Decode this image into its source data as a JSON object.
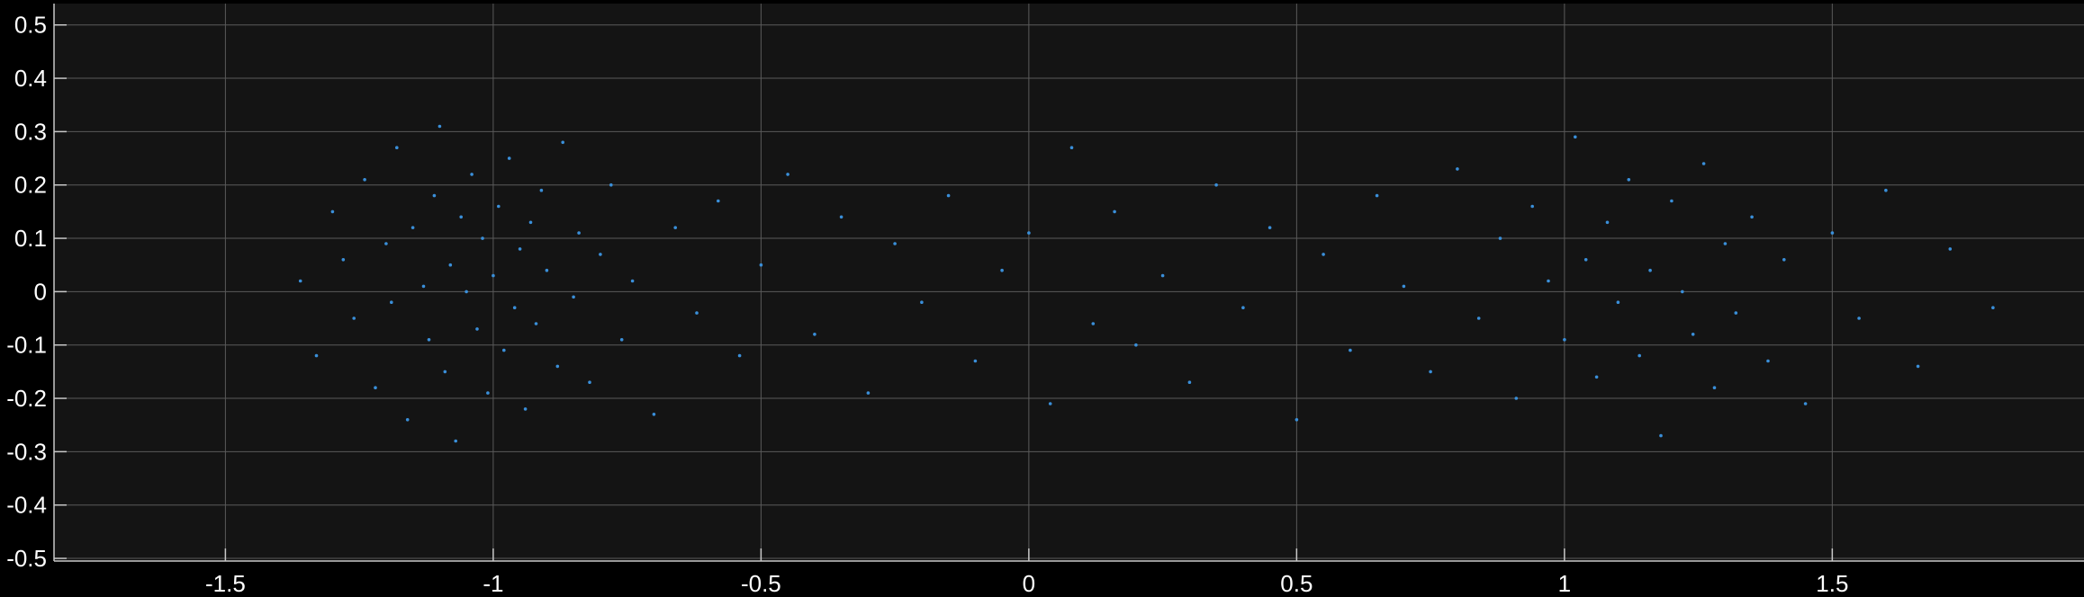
{
  "chart_data": {
    "type": "scatter",
    "title": "",
    "xlabel": "",
    "ylabel": "",
    "xlim": [
      -1.82,
      1.97
    ],
    "ylim": [
      -0.505,
      0.54
    ],
    "x_ticks": [
      -1.5,
      -1,
      -0.5,
      0,
      0.5,
      1,
      1.5
    ],
    "x_tick_labels": [
      "-1.5",
      "-1",
      "-0.5",
      "0",
      "0.5",
      "1",
      "1.5"
    ],
    "y_ticks": [
      0.5,
      0.4,
      0.3,
      0.2,
      0.1,
      0,
      -0.1,
      -0.2,
      -0.3,
      -0.4,
      -0.5
    ],
    "y_tick_labels": [
      "0.5",
      "0.4",
      "0.3",
      "0.2",
      "0.1",
      "0",
      "-0.1",
      "-0.2",
      "-0.3",
      "-0.4",
      "-0.5"
    ],
    "grid": true,
    "colors": {
      "figure_background": "#000000",
      "axes_background": "#141414",
      "grid": "#5a5a5a",
      "axis": "#c8c8c8",
      "tick_text": "#ffffff",
      "marker": "#3a8fd9"
    },
    "series": [
      {
        "marker": "dot",
        "values": [
          [
            -1.36,
            0.02
          ],
          [
            -1.33,
            -0.12
          ],
          [
            -1.3,
            0.15
          ],
          [
            -1.28,
            0.06
          ],
          [
            -1.26,
            -0.05
          ],
          [
            -1.24,
            0.21
          ],
          [
            -1.22,
            -0.18
          ],
          [
            -1.2,
            0.09
          ],
          [
            -1.19,
            -0.02
          ],
          [
            -1.18,
            0.27
          ],
          [
            -1.16,
            -0.24
          ],
          [
            -1.15,
            0.12
          ],
          [
            -1.13,
            0.01
          ],
          [
            -1.12,
            -0.09
          ],
          [
            -1.11,
            0.18
          ],
          [
            -1.1,
            0.31
          ],
          [
            -1.09,
            -0.15
          ],
          [
            -1.08,
            0.05
          ],
          [
            -1.07,
            -0.28
          ],
          [
            -1.06,
            0.14
          ],
          [
            -1.05,
            0.0
          ],
          [
            -1.04,
            0.22
          ],
          [
            -1.03,
            -0.07
          ],
          [
            -1.02,
            0.1
          ],
          [
            -1.01,
            -0.19
          ],
          [
            -1.0,
            0.03
          ],
          [
            -0.99,
            0.16
          ],
          [
            -0.98,
            -0.11
          ],
          [
            -0.97,
            0.25
          ],
          [
            -0.96,
            -0.03
          ],
          [
            -0.95,
            0.08
          ],
          [
            -0.94,
            -0.22
          ],
          [
            -0.93,
            0.13
          ],
          [
            -0.92,
            -0.06
          ],
          [
            -0.91,
            0.19
          ],
          [
            -0.9,
            0.04
          ],
          [
            -0.88,
            -0.14
          ],
          [
            -0.87,
            0.28
          ],
          [
            -0.85,
            -0.01
          ],
          [
            -0.84,
            0.11
          ],
          [
            -0.82,
            -0.17
          ],
          [
            -0.8,
            0.07
          ],
          [
            -0.78,
            0.2
          ],
          [
            -0.76,
            -0.09
          ],
          [
            -0.74,
            0.02
          ],
          [
            -0.7,
            -0.23
          ],
          [
            -0.66,
            0.12
          ],
          [
            -0.62,
            -0.04
          ],
          [
            -0.58,
            0.17
          ],
          [
            -0.54,
            -0.12
          ],
          [
            -0.5,
            0.05
          ],
          [
            -0.45,
            0.22
          ],
          [
            -0.4,
            -0.08
          ],
          [
            -0.35,
            0.14
          ],
          [
            -0.3,
            -0.19
          ],
          [
            -0.25,
            0.09
          ],
          [
            -0.2,
            -0.02
          ],
          [
            -0.15,
            0.18
          ],
          [
            -0.1,
            -0.13
          ],
          [
            -0.05,
            0.04
          ],
          [
            0.0,
            0.11
          ],
          [
            0.04,
            -0.21
          ],
          [
            0.08,
            0.27
          ],
          [
            0.12,
            -0.06
          ],
          [
            0.16,
            0.15
          ],
          [
            0.2,
            -0.1
          ],
          [
            0.25,
            0.03
          ],
          [
            0.3,
            -0.17
          ],
          [
            0.35,
            0.2
          ],
          [
            0.4,
            -0.03
          ],
          [
            0.45,
            0.12
          ],
          [
            0.5,
            -0.24
          ],
          [
            0.55,
            0.07
          ],
          [
            0.6,
            -0.11
          ],
          [
            0.65,
            0.18
          ],
          [
            0.7,
            0.01
          ],
          [
            0.75,
            -0.15
          ],
          [
            0.8,
            0.23
          ],
          [
            0.84,
            -0.05
          ],
          [
            0.88,
            0.1
          ],
          [
            0.91,
            -0.2
          ],
          [
            0.94,
            0.16
          ],
          [
            0.97,
            0.02
          ],
          [
            1.0,
            -0.09
          ],
          [
            1.02,
            0.29
          ],
          [
            1.04,
            0.06
          ],
          [
            1.06,
            -0.16
          ],
          [
            1.08,
            0.13
          ],
          [
            1.1,
            -0.02
          ],
          [
            1.12,
            0.21
          ],
          [
            1.14,
            -0.12
          ],
          [
            1.16,
            0.04
          ],
          [
            1.18,
            -0.27
          ],
          [
            1.2,
            0.17
          ],
          [
            1.22,
            0.0
          ],
          [
            1.24,
            -0.08
          ],
          [
            1.26,
            0.24
          ],
          [
            1.28,
            -0.18
          ],
          [
            1.3,
            0.09
          ],
          [
            1.32,
            -0.04
          ],
          [
            1.35,
            0.14
          ],
          [
            1.38,
            -0.13
          ],
          [
            1.41,
            0.06
          ],
          [
            1.45,
            -0.21
          ],
          [
            1.5,
            0.11
          ],
          [
            1.55,
            -0.05
          ],
          [
            1.6,
            0.19
          ],
          [
            1.66,
            -0.14
          ],
          [
            1.72,
            0.08
          ],
          [
            1.8,
            -0.03
          ]
        ]
      }
    ]
  }
}
